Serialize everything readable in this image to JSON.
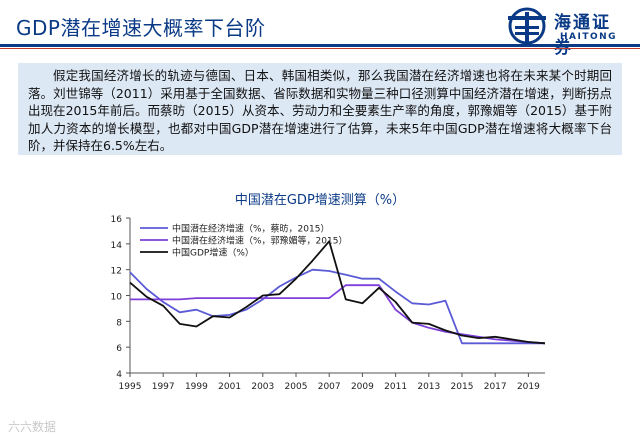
{
  "header": {
    "title": "GDP潜在增速大概率下台阶",
    "logo": {
      "name_cn": "海通证券",
      "name_en": "HAITONG"
    }
  },
  "summary": {
    "text": "假定我国经济增长的轨迹与德国、日本、韩国相类似，那么我国潜在经济增速也将在未来某个时期回落。刘世锦等（2011）采用基于全国数据、省际数据和实物量三种口径测算中国经济潜在增速，判断拐点出现在2015年前后。而蔡昉（2015）从资本、劳动力和全要素生产率的角度，郭豫媚等（2015）基于附加人力资本的增长模型，也都对中国GDP潜在增速进行了估算，未来5年中国GDP潜在增速将大概率下台阶，并保持在6.5%左右。"
  },
  "watermark": "六六数据",
  "chart_data": {
    "type": "line",
    "title": "中国潜在GDP增速测算（%）",
    "xlabel": "",
    "ylabel": "",
    "xlim": [
      1995,
      2020
    ],
    "ylim": [
      4,
      16
    ],
    "yticks": [
      4,
      6,
      8,
      10,
      12,
      14,
      16
    ],
    "xticks": [
      1995,
      1997,
      1999,
      2001,
      2003,
      2005,
      2007,
      2009,
      2011,
      2013,
      2015,
      2017,
      2019
    ],
    "grid": false,
    "legend_position": "top-left",
    "series": [
      {
        "name": "中国潜在经济增速（%，蔡昉，2015）",
        "color": "#5b5bd6",
        "x": [
          1995,
          1996,
          1997,
          1998,
          1999,
          2000,
          2001,
          2002,
          2003,
          2004,
          2005,
          2006,
          2007,
          2008,
          2009,
          2010,
          2011,
          2012,
          2013,
          2014,
          2015,
          2016,
          2017,
          2018,
          2019,
          2020
        ],
        "values": [
          11.8,
          10.5,
          9.5,
          8.7,
          8.9,
          8.4,
          8.5,
          8.9,
          9.7,
          10.7,
          11.4,
          12.0,
          11.9,
          11.6,
          11.3,
          11.3,
          10.3,
          9.4,
          9.3,
          9.6,
          6.3,
          6.3,
          6.3,
          6.3,
          6.3,
          6.3
        ]
      },
      {
        "name": "中国潜在经济增速（%，郭豫媚等，2015）",
        "color": "#7e3fd8",
        "x": [
          1995,
          1996,
          1997,
          1998,
          1999,
          2000,
          2001,
          2002,
          2003,
          2004,
          2005,
          2006,
          2007,
          2008,
          2009,
          2010,
          2011,
          2012,
          2013,
          2014,
          2015,
          2016,
          2017,
          2018,
          2019,
          2020
        ],
        "values": [
          9.7,
          9.7,
          9.7,
          9.7,
          9.8,
          9.8,
          9.8,
          9.8,
          9.8,
          9.8,
          9.8,
          9.8,
          9.8,
          10.8,
          10.8,
          10.8,
          8.9,
          7.9,
          7.5,
          7.2,
          7.0,
          6.8,
          6.6,
          6.5,
          6.4,
          6.3
        ]
      },
      {
        "name": "中国GDP增速（%）",
        "color": "#111111",
        "x": [
          1995,
          1996,
          1997,
          1998,
          1999,
          2000,
          2001,
          2002,
          2003,
          2004,
          2005,
          2006,
          2007,
          2008,
          2009,
          2010,
          2011,
          2012,
          2013,
          2014,
          2015,
          2016,
          2017,
          2018,
          2019,
          2020
        ],
        "values": [
          11.0,
          9.9,
          9.2,
          7.8,
          7.6,
          8.4,
          8.3,
          9.1,
          10.0,
          10.1,
          11.3,
          12.7,
          14.2,
          9.7,
          9.4,
          10.6,
          9.5,
          7.9,
          7.8,
          7.3,
          6.9,
          6.7,
          6.8,
          6.6,
          6.4,
          6.3
        ]
      }
    ]
  }
}
